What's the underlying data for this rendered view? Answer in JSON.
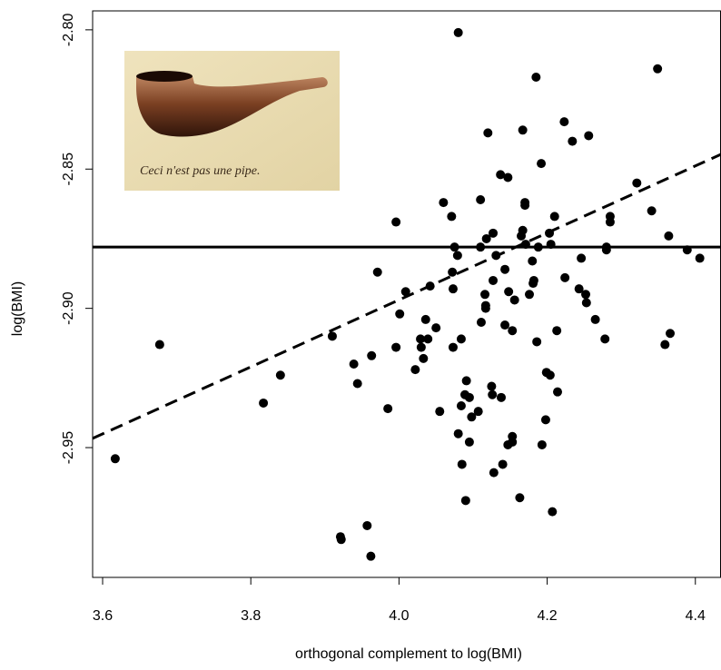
{
  "chart_data": {
    "type": "scatter",
    "xlabel": "orthogonal complement to log(BMI)",
    "ylabel": "log(BMI)",
    "annotations": [
      "Ceci n'est pas une pipe."
    ],
    "xlim": [
      3.5865,
      4.4346
    ],
    "ylim": [
      -2.9966,
      -2.7932
    ],
    "xticks": [
      3.6,
      3.8,
      {
        "value": 4.0,
        "label": "4.0"
      },
      4.2,
      4.4
    ],
    "yticks": [
      {
        "value": -2.8,
        "label": "-2.80"
      },
      -2.85,
      {
        "value": -2.9,
        "label": "-2.90"
      },
      -2.95
    ],
    "color": "#000000",
    "x": [
      3.617,
      3.677,
      3.817,
      3.84,
      3.91,
      3.921,
      3.922,
      3.939,
      3.944,
      3.957,
      3.962,
      3.963,
      3.971,
      3.985,
      3.996,
      3.996,
      4.001,
      4.009,
      4.022,
      4.029,
      4.03,
      4.033,
      4.036,
      4.039,
      4.042,
      4.05,
      4.055,
      4.06,
      4.071,
      4.072,
      4.073,
      4.073,
      4.075,
      4.079,
      4.08,
      4.084,
      4.084,
      4.085,
      4.089,
      4.09,
      4.091,
      4.095,
      4.095,
      4.098,
      4.107,
      4.11,
      4.11,
      4.111,
      4.116,
      4.117,
      4.117,
      4.118,
      4.12,
      4.125,
      4.126,
      4.127,
      4.127,
      4.128,
      4.131,
      4.137,
      4.138,
      4.14,
      4.143,
      4.143,
      4.147,
      4.147,
      4.148,
      4.153,
      4.153,
      4.153,
      4.156,
      4.163,
      4.165,
      4.167,
      4.167,
      4.17,
      4.17,
      4.171,
      4.176,
      4.18,
      4.181,
      4.182,
      4.185,
      4.186,
      4.188,
      4.192,
      4.193,
      4.198,
      4.199,
      4.203,
      4.204,
      4.205,
      4.207,
      4.21,
      4.213,
      4.214,
      4.223,
      4.224,
      4.234,
      4.243,
      4.246,
      4.252,
      4.253,
      4.256,
      4.265,
      4.278,
      4.28,
      4.28,
      4.285,
      4.285,
      4.321,
      4.341,
      4.349,
      4.359,
      4.364,
      4.366,
      4.389,
      4.406,
      4.08
    ],
    "values": [
      -2.954,
      -2.913,
      -2.934,
      -2.924,
      -2.91,
      -2.982,
      -2.983,
      -2.92,
      -2.927,
      -2.978,
      -2.989,
      -2.917,
      -2.887,
      -2.936,
      -2.869,
      -2.914,
      -2.902,
      -2.894,
      -2.922,
      -2.911,
      -2.914,
      -2.918,
      -2.904,
      -2.911,
      -2.892,
      -2.907,
      -2.937,
      -2.862,
      -2.867,
      -2.887,
      -2.914,
      -2.893,
      -2.878,
      -2.881,
      -2.945,
      -2.911,
      -2.935,
      -2.956,
      -2.931,
      -2.969,
      -2.926,
      -2.932,
      -2.948,
      -2.939,
      -2.937,
      -2.861,
      -2.878,
      -2.905,
      -2.895,
      -2.899,
      -2.9,
      -2.875,
      -2.837,
      -2.928,
      -2.931,
      -2.873,
      -2.89,
      -2.959,
      -2.881,
      -2.852,
      -2.932,
      -2.956,
      -2.906,
      -2.886,
      -2.853,
      -2.949,
      -2.894,
      -2.908,
      -2.948,
      -2.946,
      -2.897,
      -2.968,
      -2.874,
      -2.836,
      -2.872,
      -2.862,
      -2.863,
      -2.877,
      -2.895,
      -2.883,
      -2.891,
      -2.89,
      -2.817,
      -2.912,
      -2.878,
      -2.848,
      -2.949,
      -2.94,
      -2.923,
      -2.873,
      -2.924,
      -2.877,
      -2.973,
      -2.867,
      -2.908,
      -2.93,
      -2.833,
      -2.889,
      -2.84,
      -2.893,
      -2.882,
      -2.895,
      -2.898,
      -2.838,
      -2.904,
      -2.911,
      -2.878,
      -2.879,
      -2.869,
      -2.867,
      -2.855,
      -2.865,
      -2.814,
      -2.913,
      -2.874,
      -2.909,
      -2.879,
      -2.882,
      -2.801
    ],
    "lines": [
      {
        "style": "solid",
        "x": [
          3.5865,
          4.4346
        ],
        "values": [
          -2.878,
          -2.878
        ]
      },
      {
        "style": "dashed",
        "x": [
          3.5865,
          4.4346
        ],
        "values": [
          -2.9467,
          -2.8447
        ]
      }
    ]
  }
}
